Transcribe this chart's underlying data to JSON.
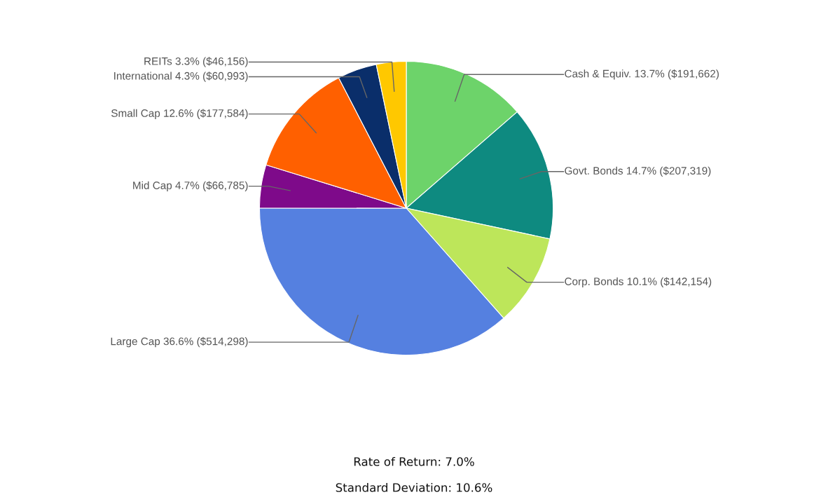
{
  "chart_data": {
    "type": "pie",
    "categories": [
      "Cash & Equiv.",
      "Govt. Bonds",
      "Corp. Bonds",
      "Large Cap",
      "Mid Cap",
      "Small Cap",
      "International",
      "REITs"
    ],
    "values": [
      191662,
      207319,
      142154,
      514298,
      66785,
      177584,
      60993,
      46156
    ],
    "value_labels": [
      "13.7% ($191,662)",
      "14.7% ($207,319)",
      "10.1% ($142,154)",
      "36.6% ($514,298)",
      "4.7% ($66,785)",
      "12.6% ($177,584)",
      "4.3% ($60,993)",
      "3.3% ($46,156)"
    ],
    "colors": [
      "#6dd36a",
      "#0e8a80",
      "#bde65a",
      "#5580e0",
      "#7e0a8a",
      "#ff6000",
      "#0a2e6a",
      "#ffc800"
    ],
    "annotations": [
      "Rate of Return: 7.0%",
      "Standard Deviation: 10.6%"
    ]
  }
}
